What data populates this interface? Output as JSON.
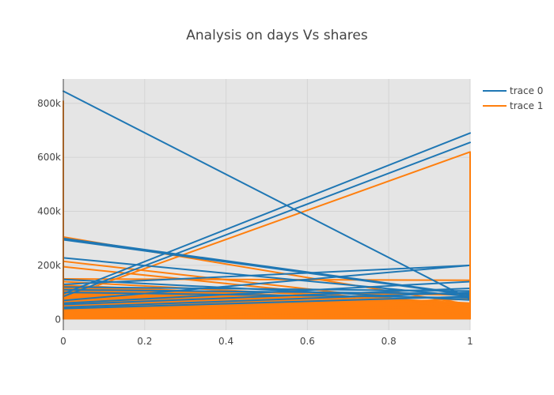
{
  "chart_data": {
    "type": "line",
    "title": "Analysis on days Vs shares",
    "xlabel": "",
    "ylabel": "",
    "xlim": [
      0,
      1
    ],
    "ylim": [
      -40000,
      890000
    ],
    "x_ticks": [
      0,
      0.2,
      0.4,
      0.6,
      0.8,
      1
    ],
    "x_tick_labels": [
      "0",
      "0.2",
      "0.4",
      "0.6",
      "0.8",
      "1"
    ],
    "y_ticks": [
      0,
      200000,
      400000,
      600000,
      800000
    ],
    "y_tick_labels": [
      "0",
      "200k",
      "400k",
      "600k",
      "800k"
    ],
    "grid": true,
    "legend_position": "top-right",
    "plot_background": "#e5e5e5",
    "series": [
      {
        "name": "trace 0",
        "color": "#1f77b4",
        "segments": [
          [
            845000,
            75000
          ],
          [
            300000,
            92000
          ],
          [
            295000,
            90000
          ],
          [
            228000,
            85000
          ],
          [
            148000,
            72000
          ],
          [
            130000,
            200000
          ],
          [
            120000,
            105000
          ],
          [
            110000,
            95000
          ],
          [
            100000,
            80000
          ],
          [
            95000,
            690000
          ],
          [
            85000,
            655000
          ],
          [
            70000,
            200000
          ],
          [
            60000,
            140000
          ],
          [
            55000,
            115000
          ],
          [
            45000,
            100000
          ],
          [
            40000,
            85000
          ]
        ]
      },
      {
        "name": "trace 1",
        "color": "#ff7f0e",
        "segments": [
          [
            305000,
            55000
          ],
          [
            215000,
            45000
          ],
          [
            195000,
            40000
          ],
          [
            150000,
            145000
          ],
          [
            140000,
            60000
          ],
          [
            125000,
            50000
          ],
          [
            110000,
            90000
          ],
          [
            80000,
            620000
          ],
          [
            60000,
            40000
          ],
          [
            30000,
            75000
          ],
          [
            10000,
            30000
          ],
          [
            5000,
            20000
          ]
        ],
        "fill_band": {
          "x0_top": 130000,
          "x1_top": 60000,
          "bottom": 0
        },
        "edge_max": {
          "x0": 810000,
          "x1": 620000
        }
      }
    ]
  }
}
